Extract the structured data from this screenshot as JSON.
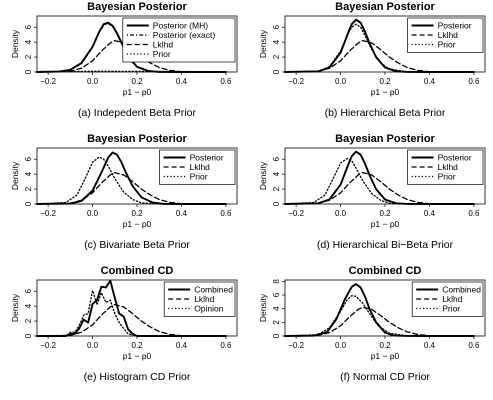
{
  "figure": {
    "x_axis_label": "p1 − p0",
    "y_axis_label": "Density"
  },
  "chart_data": [
    {
      "type": "line",
      "title": "Bayesian Posterior",
      "caption": "(a) Indepedent Beta Prior",
      "xlabel": "p1 − p0",
      "ylabel": "Density",
      "xlim": [
        -0.25,
        0.65
      ],
      "ylim": [
        0,
        7.5
      ],
      "xticks": [
        -0.2,
        0.0,
        0.2,
        0.4,
        0.6
      ],
      "yticks": [
        0,
        2,
        4,
        6
      ],
      "grid": false,
      "legend": "top-right",
      "series": [
        {
          "name": "Posterior (MH)",
          "style": "solid",
          "x": [
            -0.25,
            -0.15,
            -0.1,
            -0.05,
            0.0,
            0.03,
            0.05,
            0.07,
            0.09,
            0.11,
            0.14,
            0.17,
            0.2,
            0.25,
            0.3,
            0.4,
            0.6
          ],
          "y": [
            0,
            0.05,
            0.3,
            1.2,
            3.4,
            5.4,
            6.4,
            6.6,
            6.2,
            5.2,
            3.3,
            1.7,
            0.7,
            0.15,
            0.02,
            0,
            0
          ]
        },
        {
          "name": "Posterior (exact)",
          "style": "dotdash",
          "x": [
            -0.25,
            -0.15,
            -0.1,
            -0.05,
            0.0,
            0.03,
            0.05,
            0.07,
            0.09,
            0.11,
            0.14,
            0.17,
            0.2,
            0.25,
            0.3,
            0.4,
            0.6
          ],
          "y": [
            0,
            0.05,
            0.3,
            1.1,
            3.3,
            5.3,
            6.3,
            6.5,
            6.1,
            5.1,
            3.2,
            1.6,
            0.7,
            0.15,
            0.02,
            0,
            0
          ]
        },
        {
          "name": "Lklhd",
          "style": "dashed",
          "x": [
            -0.25,
            -0.1,
            -0.05,
            0.0,
            0.04,
            0.08,
            0.1,
            0.14,
            0.18,
            0.22,
            0.26,
            0.3,
            0.35,
            0.4,
            0.45,
            0.5,
            0.6
          ],
          "y": [
            0,
            0.1,
            0.5,
            1.5,
            2.8,
            3.9,
            4.2,
            3.9,
            3.0,
            2.0,
            1.2,
            0.6,
            0.2,
            0.05,
            0.01,
            0,
            0
          ]
        },
        {
          "name": "Prior",
          "style": "dotted",
          "x": [
            -0.25,
            0.0,
            0.3,
            0.6
          ],
          "y": [
            0.05,
            0.1,
            0.08,
            0.04
          ]
        }
      ]
    },
    {
      "type": "line",
      "title": "Bayesian Posterior",
      "caption": "(b) Hierarchical Beta Prior",
      "xlabel": "p1 − p0",
      "ylabel": "Density",
      "xlim": [
        -0.25,
        0.65
      ],
      "ylim": [
        0,
        7.5
      ],
      "xticks": [
        -0.2,
        0.0,
        0.2,
        0.4,
        0.6
      ],
      "yticks": [
        0,
        2,
        4,
        6
      ],
      "grid": false,
      "legend": "top-right",
      "series": [
        {
          "name": "Posterior",
          "style": "solid",
          "x": [
            -0.25,
            -0.1,
            -0.05,
            0.0,
            0.03,
            0.05,
            0.07,
            0.09,
            0.11,
            0.13,
            0.16,
            0.2,
            0.25,
            0.3,
            0.4,
            0.6
          ],
          "y": [
            0,
            0.1,
            0.6,
            2.6,
            4.9,
            6.4,
            7.0,
            6.6,
            5.4,
            3.9,
            2.0,
            0.6,
            0.1,
            0.01,
            0,
            0
          ]
        },
        {
          "name": "Lklhd",
          "style": "dashed",
          "x": [
            -0.25,
            -0.1,
            -0.05,
            0.0,
            0.04,
            0.08,
            0.1,
            0.14,
            0.18,
            0.22,
            0.26,
            0.3,
            0.35,
            0.4,
            0.45,
            0.5,
            0.6
          ],
          "y": [
            0,
            0.1,
            0.5,
            1.5,
            2.8,
            3.9,
            4.2,
            3.9,
            3.0,
            2.0,
            1.2,
            0.6,
            0.2,
            0.05,
            0.01,
            0,
            0
          ]
        },
        {
          "name": "Prior",
          "style": "dotted",
          "x": [
            -0.25,
            -0.1,
            -0.05,
            0.0,
            0.03,
            0.05,
            0.07,
            0.09,
            0.11,
            0.14,
            0.18,
            0.22,
            0.3,
            0.6
          ],
          "y": [
            0,
            0.1,
            0.7,
            2.8,
            4.9,
            6.0,
            6.4,
            6.0,
            4.9,
            3.0,
            1.2,
            0.4,
            0.03,
            0
          ]
        }
      ]
    },
    {
      "type": "line",
      "title": "Bayesian Posterior",
      "caption": "(c) Bivariate Beta Prior",
      "xlabel": "p1 − p0",
      "ylabel": "Density",
      "xlim": [
        -0.25,
        0.65
      ],
      "ylim": [
        0,
        7.5
      ],
      "xticks": [
        -0.2,
        0.0,
        0.2,
        0.4,
        0.6
      ],
      "yticks": [
        0,
        2,
        4,
        6
      ],
      "grid": false,
      "legend": "top-right",
      "series": [
        {
          "name": "Posterior",
          "style": "solid",
          "x": [
            -0.25,
            -0.1,
            -0.05,
            0.0,
            0.04,
            0.07,
            0.09,
            0.11,
            0.13,
            0.15,
            0.18,
            0.22,
            0.27,
            0.32,
            0.4,
            0.6
          ],
          "y": [
            0,
            0.05,
            0.4,
            1.8,
            4.2,
            6.2,
            6.9,
            6.6,
            5.6,
            4.2,
            2.4,
            0.9,
            0.2,
            0.02,
            0,
            0
          ]
        },
        {
          "name": "Lklhd",
          "style": "dashed",
          "x": [
            -0.25,
            -0.1,
            -0.05,
            0.0,
            0.04,
            0.08,
            0.1,
            0.14,
            0.18,
            0.22,
            0.26,
            0.3,
            0.35,
            0.4,
            0.45,
            0.5,
            0.6
          ],
          "y": [
            0,
            0.1,
            0.5,
            1.5,
            2.8,
            3.9,
            4.2,
            3.9,
            3.0,
            2.0,
            1.2,
            0.6,
            0.2,
            0.05,
            0.01,
            0,
            0
          ]
        },
        {
          "name": "Prior",
          "style": "dotted",
          "x": [
            -0.25,
            -0.12,
            -0.07,
            -0.03,
            0.0,
            0.03,
            0.05,
            0.07,
            0.1,
            0.14,
            0.18,
            0.22,
            0.3,
            0.6
          ],
          "y": [
            0,
            0.2,
            1.2,
            3.6,
            5.6,
            6.3,
            6.0,
            5.1,
            3.4,
            1.6,
            0.6,
            0.15,
            0.01,
            0
          ]
        }
      ]
    },
    {
      "type": "line",
      "title": "Bayesian Posterior",
      "caption": "(d) Hierarchical Bi−Beta Prior",
      "xlabel": "p1 − p0",
      "ylabel": "Density",
      "xlim": [
        -0.25,
        0.65
      ],
      "ylim": [
        0,
        7.5
      ],
      "xticks": [
        -0.2,
        0.0,
        0.2,
        0.4,
        0.6
      ],
      "yticks": [
        0,
        2,
        4,
        6
      ],
      "grid": false,
      "legend": "top-right",
      "series": [
        {
          "name": "Posterior",
          "style": "solid",
          "x": [
            -0.25,
            -0.1,
            -0.05,
            0.0,
            0.03,
            0.05,
            0.07,
            0.09,
            0.11,
            0.13,
            0.16,
            0.2,
            0.25,
            0.3,
            0.4,
            0.6
          ],
          "y": [
            0,
            0.1,
            0.6,
            2.6,
            4.9,
            6.4,
            7.0,
            6.6,
            5.4,
            3.9,
            2.0,
            0.6,
            0.1,
            0.01,
            0,
            0
          ]
        },
        {
          "name": "Lklhd",
          "style": "dashed",
          "x": [
            -0.25,
            -0.1,
            -0.05,
            0.0,
            0.04,
            0.08,
            0.1,
            0.14,
            0.18,
            0.22,
            0.26,
            0.3,
            0.35,
            0.4,
            0.45,
            0.5,
            0.6
          ],
          "y": [
            0,
            0.1,
            0.5,
            1.5,
            2.8,
            3.9,
            4.2,
            3.9,
            3.0,
            2.0,
            1.2,
            0.6,
            0.2,
            0.05,
            0.01,
            0,
            0
          ]
        },
        {
          "name": "Prior",
          "style": "dotted",
          "x": [
            -0.25,
            -0.12,
            -0.07,
            -0.03,
            0.0,
            0.03,
            0.05,
            0.07,
            0.1,
            0.14,
            0.18,
            0.22,
            0.3,
            0.6
          ],
          "y": [
            0,
            0.2,
            1.2,
            3.6,
            5.5,
            6.1,
            5.8,
            4.8,
            3.1,
            1.4,
            0.5,
            0.1,
            0.01,
            0
          ]
        }
      ]
    },
    {
      "type": "line",
      "title": "Combined CD",
      "caption": "(e) Histogram CD Prior",
      "xlabel": "p1 − p0",
      "ylabel": "Density",
      "xlim": [
        -0.25,
        0.65
      ],
      "ylim": [
        0,
        7.5
      ],
      "xticks": [
        -0.2,
        0.0,
        0.2,
        0.4,
        0.6
      ],
      "yticks": [
        0,
        2,
        4,
        6
      ],
      "grid": false,
      "legend": "top-right",
      "series": [
        {
          "name": "Combined",
          "style": "solid",
          "x": [
            -0.25,
            -0.12,
            -0.1,
            -0.08,
            -0.06,
            -0.04,
            -0.02,
            0.0,
            0.02,
            0.04,
            0.06,
            0.08,
            0.1,
            0.12,
            0.14,
            0.16,
            0.18,
            0.2,
            0.3,
            0.6
          ],
          "y": [
            0,
            0,
            0.3,
            0.3,
            1.0,
            2.2,
            1.8,
            4.3,
            4.8,
            6.6,
            6.5,
            7.4,
            5.1,
            3.0,
            2.6,
            0.9,
            0.3,
            0,
            0,
            0
          ]
        },
        {
          "name": "Lklhd",
          "style": "dashed",
          "x": [
            -0.25,
            -0.1,
            -0.05,
            0.0,
            0.04,
            0.08,
            0.1,
            0.14,
            0.18,
            0.22,
            0.26,
            0.3,
            0.35,
            0.4,
            0.45,
            0.5,
            0.6
          ],
          "y": [
            0,
            0.1,
            0.5,
            1.5,
            2.8,
            3.9,
            4.2,
            3.9,
            3.0,
            2.0,
            1.2,
            0.6,
            0.2,
            0.05,
            0.01,
            0,
            0
          ]
        },
        {
          "name": "Opinion",
          "style": "dotted",
          "x": [
            -0.25,
            -0.12,
            -0.1,
            -0.08,
            -0.06,
            -0.04,
            -0.02,
            0.0,
            0.02,
            0.04,
            0.06,
            0.08,
            0.1,
            0.12,
            0.14,
            0.16,
            0.2,
            0.3,
            0.6
          ],
          "y": [
            0,
            0,
            0.5,
            0.5,
            1.4,
            2.8,
            3.0,
            6.1,
            4.2,
            5.8,
            4.5,
            4.8,
            3.0,
            1.8,
            1.0,
            0.3,
            0,
            0,
            0
          ]
        }
      ]
    },
    {
      "type": "line",
      "title": "Combined CD",
      "caption": "(f) Normal CD Prior",
      "xlabel": "p1 − p0",
      "ylabel": "Density",
      "xlim": [
        -0.25,
        0.65
      ],
      "ylim": [
        0,
        8.2
      ],
      "xticks": [
        -0.2,
        0.0,
        0.2,
        0.4,
        0.6
      ],
      "yticks": [
        0,
        2,
        4,
        6,
        8
      ],
      "grid": false,
      "legend": "top-right",
      "series": [
        {
          "name": "Combined",
          "style": "solid",
          "x": [
            -0.25,
            -0.12,
            -0.06,
            -0.02,
            0.02,
            0.05,
            0.07,
            0.09,
            0.11,
            0.13,
            0.16,
            0.2,
            0.24,
            0.3,
            0.4,
            0.6
          ],
          "y": [
            0,
            0.05,
            0.6,
            2.4,
            5.4,
            7.2,
            7.6,
            7.1,
            5.8,
            4.0,
            2.0,
            0.5,
            0.08,
            0.01,
            0,
            0
          ]
        },
        {
          "name": "Lklhd",
          "style": "dashed",
          "x": [
            -0.25,
            -0.1,
            -0.05,
            0.0,
            0.04,
            0.08,
            0.1,
            0.14,
            0.18,
            0.22,
            0.26,
            0.3,
            0.35,
            0.4,
            0.45,
            0.5,
            0.6
          ],
          "y": [
            0,
            0.1,
            0.5,
            1.5,
            2.8,
            3.9,
            4.2,
            3.9,
            3.0,
            2.0,
            1.2,
            0.6,
            0.2,
            0.05,
            0.01,
            0,
            0
          ]
        },
        {
          "name": "Prior",
          "style": "dotted",
          "x": [
            -0.25,
            -0.1,
            -0.05,
            0.0,
            0.03,
            0.05,
            0.07,
            0.1,
            0.13,
            0.17,
            0.22,
            0.3,
            0.6
          ],
          "y": [
            0,
            0.2,
            1.2,
            3.6,
            5.3,
            5.9,
            5.8,
            4.8,
            3.3,
            1.5,
            0.4,
            0.03,
            0
          ]
        }
      ]
    }
  ]
}
